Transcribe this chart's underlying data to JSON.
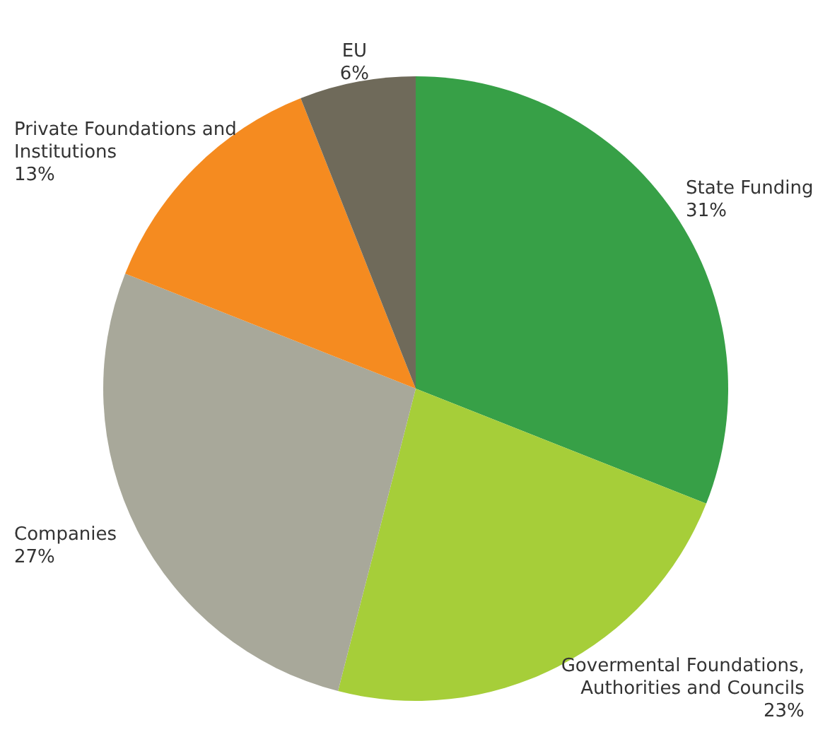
{
  "chart_data": {
    "type": "pie",
    "categories": [
      "State Funding",
      "Govermental Foundations, Authorities and Councils",
      "Companies",
      "Private Foundations and Institutions",
      "EU"
    ],
    "values": [
      31,
      23,
      27,
      13,
      6
    ],
    "value_labels": [
      "31%",
      "23%",
      "27%",
      "13%",
      "6%"
    ],
    "colors": [
      "#37a047",
      "#a6ce39",
      "#a8a89a",
      "#f58b20",
      "#6f6a5a"
    ],
    "legend": false
  }
}
